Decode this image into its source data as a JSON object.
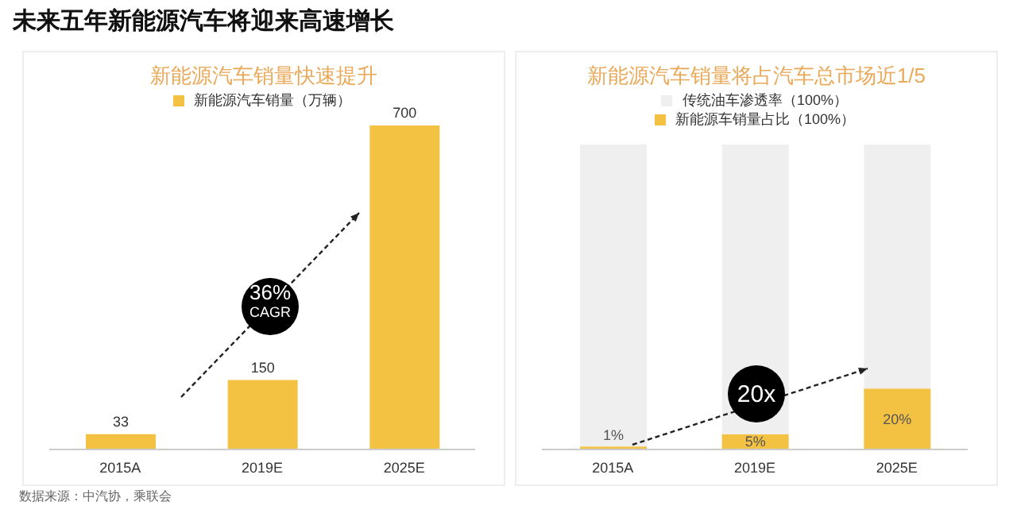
{
  "chart_data": [
    {
      "type": "bar",
      "title": "新能源汽车销量快速提升",
      "categories": [
        "2015A",
        "2019E",
        "2025E"
      ],
      "series": [
        {
          "name": "新能源汽车销量（万辆）",
          "color": "#f4c242",
          "values": [
            33,
            150,
            700
          ]
        }
      ],
      "ylim": [
        0,
        700
      ],
      "data_labels": true,
      "legend": "top",
      "tick_labels": "x",
      "annotations": [
        "未来五年新能源汽车将迎来高速增长",
        "36%\nCAGR",
        "数据来源：中汽协，乘联会"
      ]
    },
    {
      "type": "bar",
      "title": "新能源汽车销量将占汽车总市场近1/5",
      "categories": [
        "2015A",
        "2019E",
        "2025E"
      ],
      "stacked": true,
      "series": [
        {
          "name": "新能源车销量占比（100%）",
          "color": "#f4c242",
          "values": [
            1,
            5,
            20
          ],
          "value_labels": [
            "1%",
            "5%",
            "20%"
          ]
        },
        {
          "name": "传统油车渗透率（100%）",
          "color": "#efefef",
          "values": [
            99,
            95,
            80
          ]
        }
      ],
      "ylim": [
        0,
        100
      ],
      "legend": "top",
      "tick_labels": "x",
      "annotations": [
        "20x"
      ]
    }
  ]
}
